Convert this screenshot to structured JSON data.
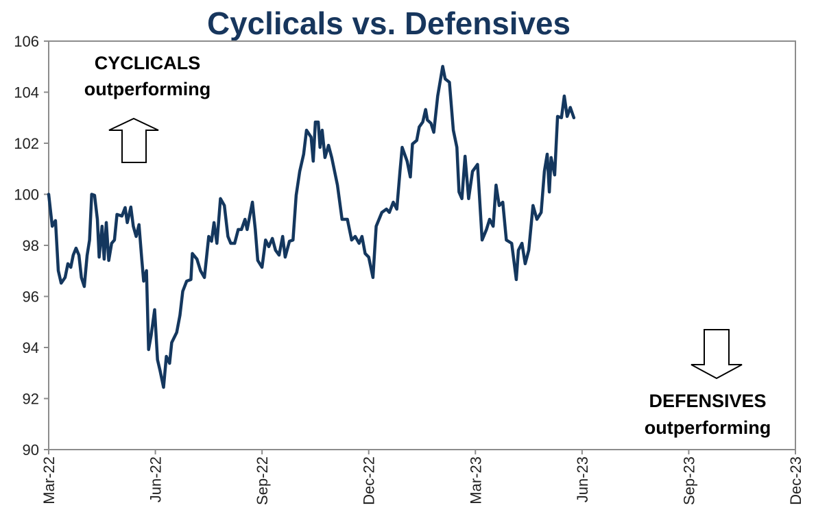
{
  "chart_data": {
    "type": "line",
    "title": "Cyclicals vs. Defensives",
    "xlabel": "",
    "ylabel": "",
    "ylim": [
      90,
      106
    ],
    "yticks": [
      90,
      92,
      94,
      96,
      98,
      100,
      102,
      104,
      106
    ],
    "xlim_months_since_mar22": [
      0,
      21
    ],
    "xtick_labels": [
      "Mar-22",
      "Jun-22",
      "Sep-22",
      "Dec-22",
      "Mar-23",
      "Jun-23",
      "Sep-23",
      "Dec-23"
    ],
    "xtick_positions_months": [
      0,
      3,
      6,
      9,
      12,
      15,
      18,
      21
    ],
    "grid": false,
    "legend": "none",
    "annotations": {
      "top_line1": "CYCLICALS",
      "top_line2": "outperforming",
      "bottom_line1": "DEFENSIVES",
      "bottom_line2": "outperforming"
    },
    "series": [
      {
        "name": "Cyclicals vs. Defensives",
        "color": "#14375e",
        "x": [
          0,
          0.1,
          0.19,
          0.27,
          0.35,
          0.46,
          0.54,
          0.62,
          0.69,
          0.77,
          0.85,
          0.92,
          1.0,
          1.08,
          1.15,
          1.21,
          1.29,
          1.37,
          1.42,
          1.5,
          1.56,
          1.62,
          1.69,
          1.77,
          1.85,
          1.92,
          2.06,
          2.15,
          2.21,
          2.31,
          2.38,
          2.46,
          2.54,
          2.62,
          2.67,
          2.75,
          2.81,
          2.88,
          2.98,
          3.06,
          3.13,
          3.23,
          3.31,
          3.4,
          3.46,
          3.6,
          3.69,
          3.77,
          3.88,
          4.0,
          4.04,
          4.17,
          4.27,
          4.38,
          4.5,
          4.58,
          4.65,
          4.73,
          4.83,
          4.94,
          5.04,
          5.12,
          5.23,
          5.33,
          5.42,
          5.52,
          5.58,
          5.73,
          5.81,
          5.88,
          6.0,
          6.1,
          6.19,
          6.29,
          6.38,
          6.48,
          6.58,
          6.65,
          6.77,
          6.87,
          6.96,
          7.06,
          7.17,
          7.25,
          7.38,
          7.44,
          7.5,
          7.58,
          7.63,
          7.69,
          7.77,
          7.87,
          7.96,
          8.12,
          8.25,
          8.4,
          8.52,
          8.62,
          8.73,
          8.81,
          8.9,
          9.0,
          9.12,
          9.21,
          9.37,
          9.5,
          9.58,
          9.69,
          9.79,
          9.88,
          9.94,
          10.08,
          10.17,
          10.23,
          10.35,
          10.42,
          10.52,
          10.6,
          10.65,
          10.75,
          10.83,
          10.94,
          11.08,
          11.15,
          11.27,
          11.38,
          11.48,
          11.54,
          11.62,
          11.71,
          11.81,
          11.92,
          12.06,
          12.19,
          12.31,
          12.4,
          12.5,
          12.58,
          12.67,
          12.77,
          12.87,
          13.02,
          13.15,
          13.21,
          13.31,
          13.4,
          13.5,
          13.62,
          13.73,
          13.85,
          13.94,
          14.02,
          14.08,
          14.13,
          14.23,
          14.31,
          14.42,
          14.5,
          14.58,
          14.67,
          14.77
        ],
        "y": [
          100.0,
          98.75,
          98.97,
          97.01,
          96.52,
          96.74,
          97.28,
          97.14,
          97.62,
          97.89,
          97.62,
          96.74,
          96.39,
          97.6,
          98.21,
          100.0,
          99.96,
          99.02,
          97.54,
          98.75,
          97.46,
          98.89,
          97.41,
          98.08,
          98.21,
          99.21,
          99.15,
          99.48,
          98.89,
          99.5,
          98.75,
          98.35,
          98.81,
          97.41,
          96.6,
          97.01,
          93.92,
          94.46,
          95.48,
          93.52,
          93.11,
          92.44,
          93.65,
          93.38,
          94.19,
          94.59,
          95.26,
          96.2,
          96.6,
          96.66,
          97.68,
          97.46,
          97.01,
          96.74,
          98.35,
          98.16,
          98.89,
          98.08,
          99.83,
          99.56,
          98.35,
          98.08,
          98.08,
          98.62,
          98.62,
          99.02,
          98.62,
          99.69,
          98.62,
          97.41,
          97.14,
          98.21,
          97.95,
          98.27,
          97.81,
          97.62,
          98.35,
          97.54,
          98.16,
          98.21,
          99.96,
          100.9,
          101.57,
          102.51,
          102.24,
          101.3,
          102.83,
          102.83,
          101.84,
          102.51,
          101.44,
          101.92,
          101.44,
          100.36,
          99.02,
          99.02,
          98.21,
          98.35,
          98.08,
          98.35,
          97.68,
          97.54,
          96.74,
          98.75,
          99.29,
          99.42,
          99.29,
          99.69,
          99.42,
          100.9,
          101.84,
          101.3,
          100.68,
          101.97,
          102.11,
          102.64,
          102.83,
          103.32,
          102.91,
          102.78,
          102.43,
          103.85,
          105.01,
          104.52,
          104.39,
          102.51,
          101.84,
          100.09,
          99.83,
          101.49,
          99.83,
          100.9,
          101.17,
          98.21,
          98.62,
          99.02,
          98.75,
          100.36,
          99.56,
          99.69,
          98.21,
          98.08,
          96.66,
          97.81,
          98.08,
          97.28,
          97.81,
          99.56,
          99.02,
          99.29,
          100.9,
          101.57,
          100.09,
          101.44,
          100.76,
          103.05,
          103.0,
          103.85,
          103.05,
          103.4,
          103.0
        ]
      }
    ]
  }
}
